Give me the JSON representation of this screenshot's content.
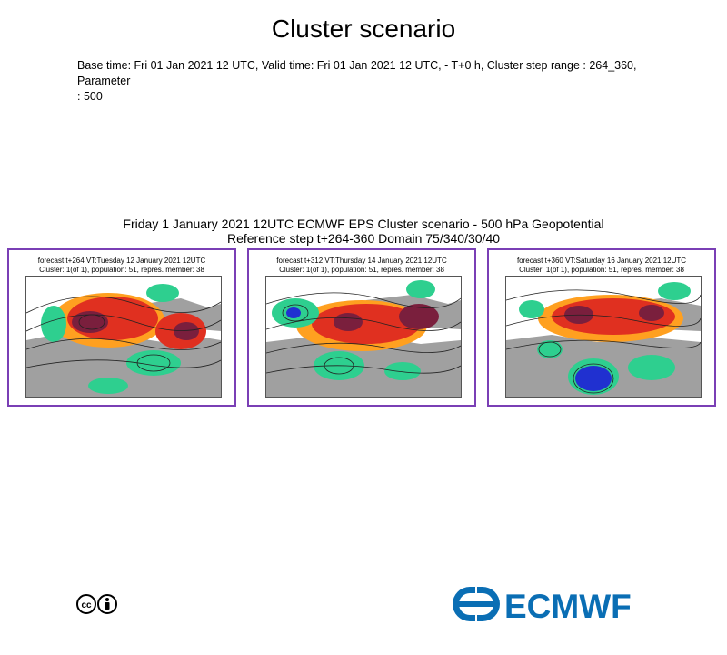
{
  "page": {
    "title": "Cluster scenario",
    "meta_line1": "Base time: Fri 01 Jan 2021 12 UTC, Valid time: Fri 01 Jan 2021 12 UTC, - T+0 h, Cluster step range : 264_360, Parameter",
    "meta_line2": ": 500"
  },
  "figure": {
    "title_line1": "Friday 1 January 2021 12UTC ECMWF EPS Cluster scenario - 500 hPa Geopotential",
    "title_line2": "Reference step t+264-360 Domain 75/340/30/40"
  },
  "panels": [
    {
      "caption_line1": "forecast t+264 VT:Tuesday 12 January 2021 12UTC",
      "caption_line2": "Cluster: 1(of 1), population: 51, repres. member: 38"
    },
    {
      "caption_line1": "forecast t+312 VT:Thursday 14 January 2021 12UTC",
      "caption_line2": "Cluster: 1(of 1), population: 51, repres. member: 38"
    },
    {
      "caption_line1": "forecast t+360 VT:Saturday 16 January 2021 12UTC",
      "caption_line2": "Cluster: 1(of 1), population: 51, repres. member: 38"
    }
  ],
  "footer": {
    "license_icons": [
      "creative-commons-icon",
      "attribution-person-icon"
    ],
    "logo_text": "ECMWF"
  },
  "colors": {
    "panel_border": "#7a3fb5",
    "logo_blue": "#0a6eb4",
    "anomaly_positive_strong": "#7a1f3d",
    "anomaly_positive": "#e03020",
    "anomaly_warm": "#ffa020",
    "anomaly_negative": "#2ecf8f",
    "anomaly_negative_strong": "#2030d0",
    "land": "#a0a0a0"
  }
}
